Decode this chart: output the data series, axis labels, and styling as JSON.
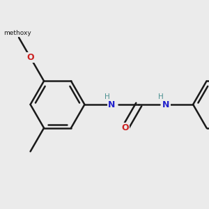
{
  "bg": "#ebebeb",
  "bc": "#1a1a1a",
  "bw": 1.8,
  "NC": "#2222cc",
  "OC": "#cc2222",
  "HC": "#4a9090",
  "afs": 9,
  "hfs": 7.5,
  "figw": 3.0,
  "figh": 3.0,
  "dpi": 100,
  "xlim": [
    20,
    280
  ],
  "ylim": [
    40,
    270
  ]
}
